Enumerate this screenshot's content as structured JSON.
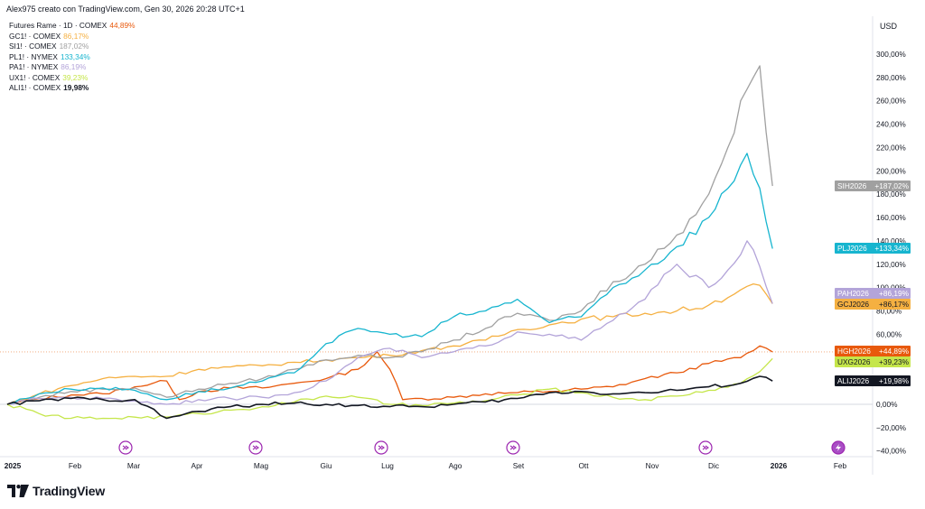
{
  "header": {
    "author_line": "Alex975 creato con TradingView.com, Gen 30, 2026 20:28 UTC+1"
  },
  "legend": [
    {
      "label": "Futures Rame · 1D · COMEX",
      "value": "44,89%",
      "color": "#e8590c"
    },
    {
      "label": "GC1! · COMEX",
      "value": "86,17%",
      "color": "#f5b041"
    },
    {
      "label": "SI1! · COMEX",
      "value": "187,02%",
      "color": "#a0a0a0"
    },
    {
      "label": "PL1! · NYMEX",
      "value": "133,34%",
      "color": "#17b5cf"
    },
    {
      "label": "PA1! · NYMEX",
      "value": "86,19%",
      "color": "#b3a4d9"
    },
    {
      "label": "UX1! · COMEX",
      "value": "39,23%",
      "color": "#c5e64a"
    },
    {
      "label": "ALI1! · COMEX",
      "value": "19,98%",
      "color": "#131722"
    }
  ],
  "currency_label": "USD",
  "brand": {
    "name": "TradingView"
  },
  "chart_data": {
    "type": "line",
    "x_labels": [
      "2025",
      "Feb",
      "Mar",
      "Apr",
      "Mag",
      "Giu",
      "Lug",
      "Ago",
      "Set",
      "Ott",
      "Nov",
      "Dic",
      "2026",
      "Feb"
    ],
    "y_tick_labels": [
      "300,00%",
      "280,00%",
      "260,00%",
      "240,00%",
      "220,00%",
      "200,00%",
      "180,00%",
      "160,00%",
      "140,00%",
      "120,00%",
      "100,00%",
      "80,00%",
      "60,00%",
      "40,00%",
      "20,00%",
      "0,00%",
      "−20,00%",
      "−40,00%"
    ],
    "y_range": [
      -40,
      300
    ],
    "y_unit": "%",
    "reference_line": {
      "value": 44.89,
      "style": "dotted"
    },
    "series": [
      {
        "name": "Futures Rame",
        "tag": "HGH2026",
        "last_label": "+44,89%",
        "color": "#e8590c",
        "points": [
          [
            0,
            0
          ],
          [
            0.5,
            5
          ],
          [
            1,
            8
          ],
          [
            1.5,
            9
          ],
          [
            2,
            15
          ],
          [
            2.5,
            20
          ],
          [
            2.7,
            4
          ],
          [
            3,
            11
          ],
          [
            3.5,
            14
          ],
          [
            4,
            14
          ],
          [
            4.5,
            18
          ],
          [
            5,
            22
          ],
          [
            5.5,
            30
          ],
          [
            5.8,
            45
          ],
          [
            6,
            30
          ],
          [
            6.2,
            4
          ],
          [
            6.5,
            5
          ],
          [
            7,
            6
          ],
          [
            7.5,
            9
          ],
          [
            8,
            10
          ],
          [
            8.5,
            11
          ],
          [
            9,
            13
          ],
          [
            9.5,
            15
          ],
          [
            10,
            22
          ],
          [
            10.5,
            27
          ],
          [
            11,
            35
          ],
          [
            11.5,
            40
          ],
          [
            11.8,
            50
          ],
          [
            12,
            44.89
          ]
        ]
      },
      {
        "name": "GC1!",
        "tag": "GCJ2026",
        "last_label": "+86,17%",
        "color": "#f5b041",
        "points": [
          [
            0,
            0
          ],
          [
            0.5,
            9
          ],
          [
            1,
            16
          ],
          [
            1.5,
            22
          ],
          [
            2,
            24
          ],
          [
            2.5,
            24
          ],
          [
            3,
            30
          ],
          [
            3.5,
            32
          ],
          [
            4,
            33
          ],
          [
            4.5,
            36
          ],
          [
            5,
            38
          ],
          [
            5.5,
            40
          ],
          [
            6,
            42
          ],
          [
            6.5,
            46
          ],
          [
            7,
            50
          ],
          [
            7.5,
            55
          ],
          [
            8,
            64
          ],
          [
            8.5,
            68
          ],
          [
            9,
            73
          ],
          [
            9.5,
            75
          ],
          [
            10,
            78
          ],
          [
            10.5,
            80
          ],
          [
            11,
            85
          ],
          [
            11.5,
            98
          ],
          [
            11.8,
            102
          ],
          [
            12,
            86.17
          ]
        ]
      },
      {
        "name": "SI1!",
        "tag": "SIH2026",
        "last_label": "+187,02%",
        "color": "#a0a0a0",
        "points": [
          [
            0,
            0
          ],
          [
            0.5,
            6
          ],
          [
            1,
            11
          ],
          [
            1.5,
            13
          ],
          [
            2,
            14
          ],
          [
            2.5,
            6
          ],
          [
            3,
            13
          ],
          [
            3.5,
            18
          ],
          [
            4,
            22
          ],
          [
            4.5,
            30
          ],
          [
            5,
            38
          ],
          [
            5.5,
            42
          ],
          [
            6,
            40
          ],
          [
            6.5,
            45
          ],
          [
            7,
            55
          ],
          [
            7.5,
            65
          ],
          [
            8,
            78
          ],
          [
            8.5,
            72
          ],
          [
            9,
            80
          ],
          [
            9.5,
            105
          ],
          [
            10,
            120
          ],
          [
            10.5,
            145
          ],
          [
            11,
            180
          ],
          [
            11.3,
            220
          ],
          [
            11.6,
            270
          ],
          [
            11.8,
            290
          ],
          [
            12,
            187.02
          ]
        ]
      },
      {
        "name": "PL1!",
        "tag": "PLJ2026",
        "last_label": "+133,34%",
        "color": "#17b5cf",
        "points": [
          [
            0,
            0
          ],
          [
            0.5,
            9
          ],
          [
            1,
            13
          ],
          [
            1.5,
            14
          ],
          [
            2,
            12
          ],
          [
            2.5,
            4
          ],
          [
            3,
            11
          ],
          [
            3.5,
            14
          ],
          [
            4,
            20
          ],
          [
            4.5,
            27
          ],
          [
            5,
            52
          ],
          [
            5.5,
            65
          ],
          [
            6,
            60
          ],
          [
            6.5,
            58
          ],
          [
            7,
            75
          ],
          [
            7.5,
            80
          ],
          [
            8,
            90
          ],
          [
            8.5,
            70
          ],
          [
            9,
            75
          ],
          [
            9.5,
            100
          ],
          [
            10,
            115
          ],
          [
            10.5,
            135
          ],
          [
            11,
            160
          ],
          [
            11.3,
            185
          ],
          [
            11.6,
            215
          ],
          [
            11.8,
            185
          ],
          [
            12,
            133.34
          ]
        ]
      },
      {
        "name": "PA1!",
        "tag": "PAH2026",
        "last_label": "+86,19%",
        "color": "#b3a4d9",
        "points": [
          [
            0,
            0
          ],
          [
            0.5,
            5
          ],
          [
            1,
            6
          ],
          [
            1.5,
            5
          ],
          [
            2,
            3
          ],
          [
            2.5,
            0
          ],
          [
            3,
            4
          ],
          [
            3.5,
            5
          ],
          [
            4,
            6
          ],
          [
            4.5,
            10
          ],
          [
            5,
            20
          ],
          [
            5.5,
            40
          ],
          [
            6,
            48
          ],
          [
            6.5,
            40
          ],
          [
            7,
            45
          ],
          [
            7.5,
            50
          ],
          [
            8,
            62
          ],
          [
            8.5,
            60
          ],
          [
            9,
            55
          ],
          [
            9.5,
            72
          ],
          [
            10,
            90
          ],
          [
            10.5,
            120
          ],
          [
            11,
            100
          ],
          [
            11.3,
            115
          ],
          [
            11.6,
            140
          ],
          [
            11.8,
            118
          ],
          [
            12,
            86.19
          ]
        ]
      },
      {
        "name": "UX1!",
        "tag": "UXG2026",
        "last_label": "+39,23%",
        "color": "#c5e64a",
        "points": [
          [
            0,
            0
          ],
          [
            0.5,
            -8
          ],
          [
            1,
            -12
          ],
          [
            1.5,
            -12
          ],
          [
            2,
            -11
          ],
          [
            2.5,
            -11
          ],
          [
            3,
            -8
          ],
          [
            3.5,
            -5
          ],
          [
            4,
            -2
          ],
          [
            4.5,
            2
          ],
          [
            5,
            7
          ],
          [
            5.5,
            6
          ],
          [
            6,
            0
          ],
          [
            6.5,
            -1
          ],
          [
            7,
            1
          ],
          [
            7.5,
            3
          ],
          [
            8,
            8
          ],
          [
            8.5,
            13
          ],
          [
            9,
            10
          ],
          [
            9.5,
            6
          ],
          [
            10,
            4
          ],
          [
            10.5,
            7
          ],
          [
            11,
            12
          ],
          [
            11.5,
            18
          ],
          [
            11.8,
            28
          ],
          [
            12,
            39.23
          ]
        ]
      },
      {
        "name": "ALI1!",
        "tag": "ALIJ2026",
        "last_label": "+19,98%",
        "color": "#131722",
        "points": [
          [
            0,
            0
          ],
          [
            0.5,
            3
          ],
          [
            1,
            5
          ],
          [
            1.5,
            4
          ],
          [
            2,
            4
          ],
          [
            2.5,
            -12
          ],
          [
            3,
            -6
          ],
          [
            3.5,
            -2
          ],
          [
            4,
            0
          ],
          [
            4.5,
            1
          ],
          [
            5,
            0
          ],
          [
            5.5,
            -1
          ],
          [
            6,
            -2
          ],
          [
            6.5,
            -2
          ],
          [
            7,
            0
          ],
          [
            7.5,
            2
          ],
          [
            8,
            5
          ],
          [
            8.5,
            10
          ],
          [
            9,
            11
          ],
          [
            9.5,
            9
          ],
          [
            10,
            10
          ],
          [
            10.5,
            12
          ],
          [
            11,
            15
          ],
          [
            11.5,
            18
          ],
          [
            11.8,
            24
          ],
          [
            12,
            19.98
          ]
        ]
      }
    ]
  }
}
